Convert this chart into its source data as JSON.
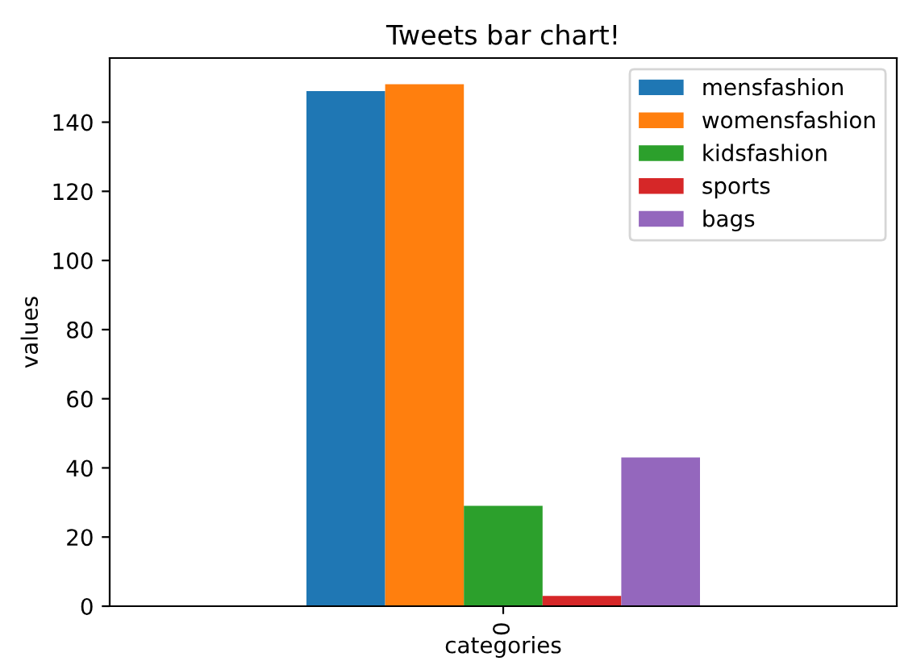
{
  "chart_data": {
    "type": "bar",
    "title": "Tweets bar chart!",
    "xlabel": "categories",
    "ylabel": "values",
    "categories": [
      "0"
    ],
    "series": [
      {
        "name": "mensfashion",
        "color": "#1f77b4",
        "values": [
          149
        ]
      },
      {
        "name": "womensfashion",
        "color": "#ff7f0e",
        "values": [
          151
        ]
      },
      {
        "name": "kidsfashion",
        "color": "#2ca02c",
        "values": [
          29
        ]
      },
      {
        "name": "sports",
        "color": "#d62728",
        "values": [
          3
        ]
      },
      {
        "name": "bags",
        "color": "#9467bd",
        "values": [
          43
        ]
      }
    ],
    "ylim": [
      0,
      158.55
    ],
    "yticks": [
      0,
      20,
      40,
      60,
      80,
      100,
      120,
      140
    ],
    "legend": "top right",
    "grid": false
  }
}
